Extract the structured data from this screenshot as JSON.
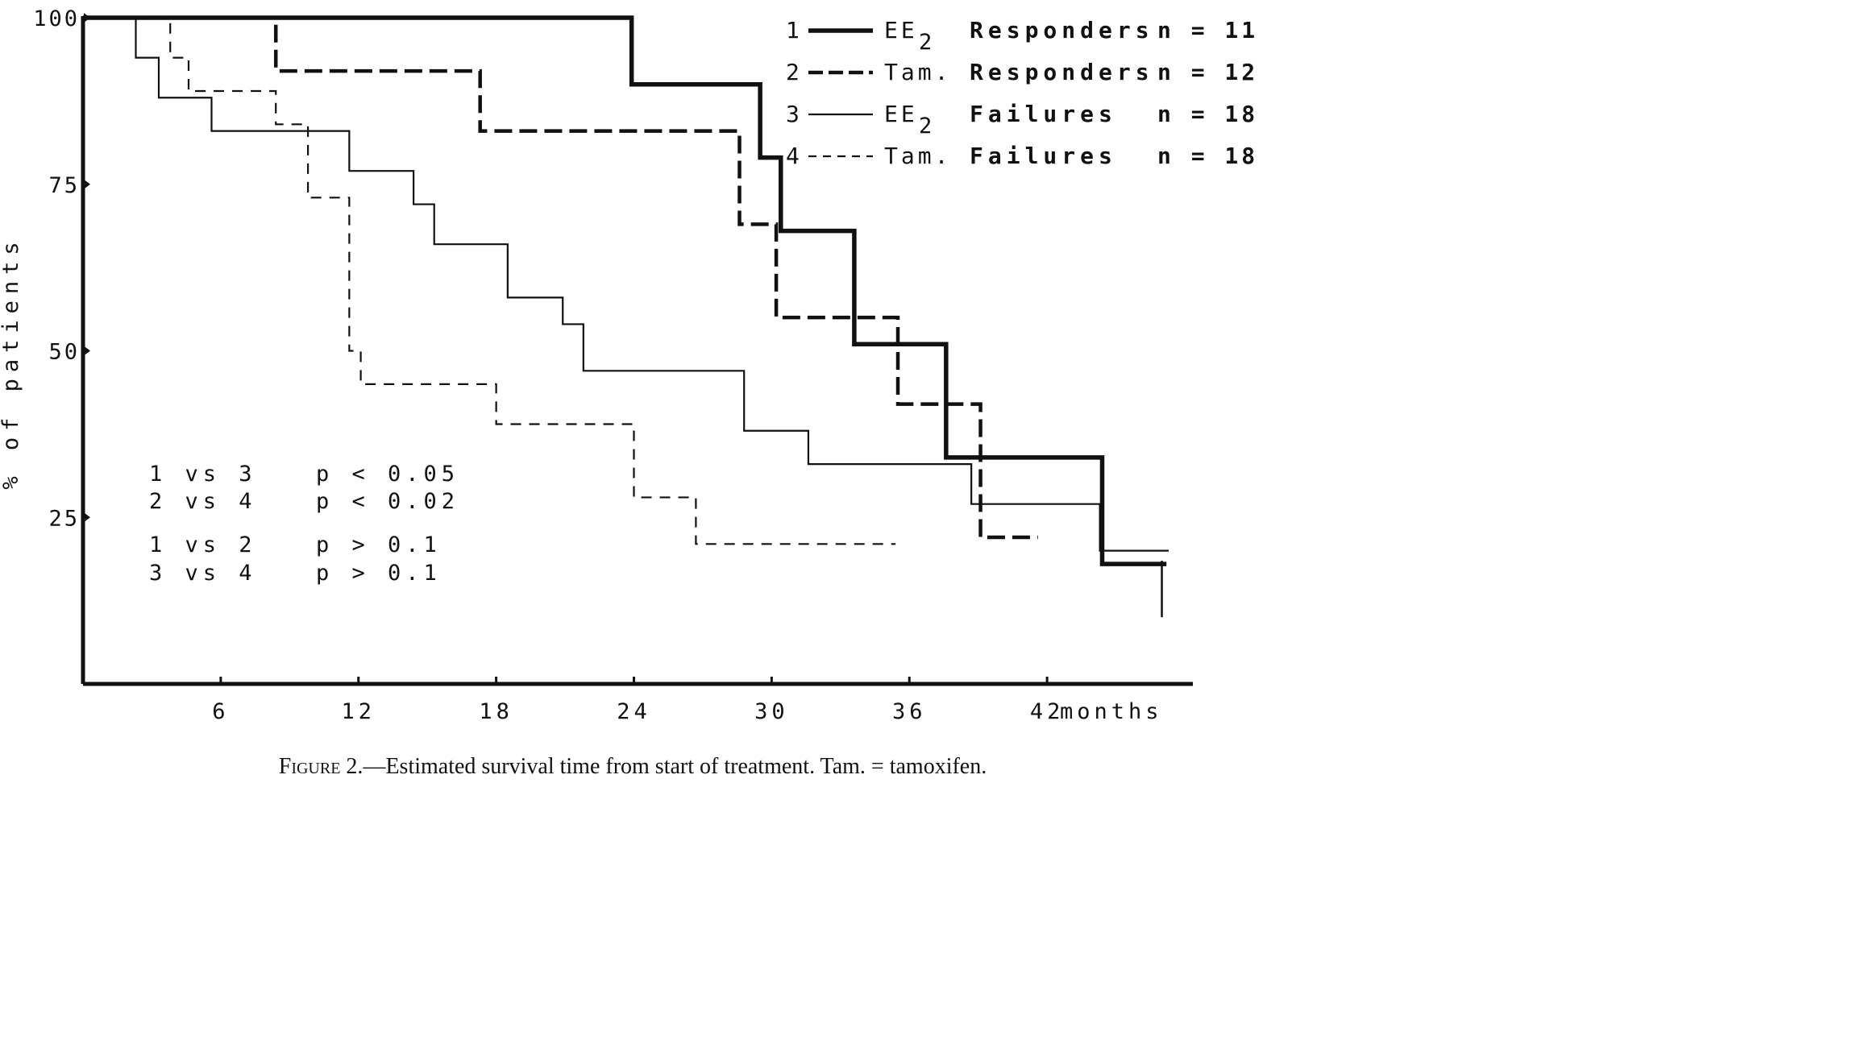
{
  "chart_data": {
    "type": "line",
    "step": true,
    "xlabel": "months",
    "ylabel": "% of patients",
    "xlim": [
      0,
      48
    ],
    "ylim": [
      0,
      100
    ],
    "x_ticks": [
      6,
      12,
      18,
      24,
      30,
      36,
      42
    ],
    "x_tick_labels": [
      "6",
      "12",
      "18",
      "24",
      "30",
      "36",
      "42"
    ],
    "y_ticks": [
      25,
      50,
      75,
      100
    ],
    "y_tick_labels": [
      "25",
      "50",
      "75",
      "100"
    ],
    "grid": false,
    "legend_position": "top-right",
    "series": [
      {
        "name": "EE2 Responders",
        "legend_num": "1",
        "legend_drug": "EE",
        "legend_sub": "2",
        "legend_group": "Responders",
        "legend_n": "n = 11",
        "style": "thick-solid",
        "x": [
          0,
          23.9,
          29.5,
          30.4,
          33.6,
          37.6,
          44.4,
          47.2
        ],
        "y": [
          100,
          90,
          79,
          68,
          51,
          34,
          18,
          18
        ]
      },
      {
        "name": "Tam. Responders",
        "legend_num": "2",
        "legend_drug": "Tam.",
        "legend_sub": "",
        "legend_group": "Responders",
        "legend_n": "n = 12",
        "style": "thick-dash",
        "x": [
          0,
          8.4,
          17.3,
          28.6,
          30.2,
          35.5,
          39.1,
          41.6
        ],
        "y": [
          100,
          92,
          83,
          69,
          55,
          42,
          22,
          22
        ]
      },
      {
        "name": "EE2 Failures",
        "legend_num": "3",
        "legend_drug": "EE",
        "legend_sub": "2",
        "legend_group": "Failures",
        "legend_n": "n = 18",
        "style": "thin-solid",
        "x": [
          0,
          2.3,
          3.3,
          5.6,
          11.6,
          14.4,
          15.3,
          18.5,
          20.9,
          21.8,
          28.8,
          31.6,
          38.7,
          44.3,
          47.3
        ],
        "y": [
          100,
          94,
          88,
          83,
          77,
          72,
          66,
          58,
          54,
          47,
          38,
          33,
          27,
          20,
          20
        ]
      },
      {
        "name": "Tam. Failures",
        "legend_num": "4",
        "legend_drug": "Tam.",
        "legend_sub": "",
        "legend_group": "Failures",
        "legend_n": "n = 18",
        "style": "thin-dash",
        "x": [
          0,
          3.8,
          4.6,
          8.4,
          9.8,
          11.6,
          12.1,
          18.0,
          24.0,
          26.7,
          35.4
        ],
        "y": [
          100,
          94,
          89,
          84,
          73,
          50,
          45,
          39,
          28,
          21,
          21
        ]
      }
    ],
    "annotations": [
      {
        "pair": "1 vs 3",
        "p": "p < 0.05"
      },
      {
        "pair": "2 vs 4",
        "p": "p < 0.02"
      },
      {
        "pair": "1 vs 2",
        "p": "p > 0.1"
      },
      {
        "pair": "3 vs 4",
        "p": "p > 0.1"
      }
    ]
  },
  "caption": {
    "label": "Figure 2.",
    "text": "—Estimated survival time from start of treatment. Tam. = tamoxifen."
  }
}
